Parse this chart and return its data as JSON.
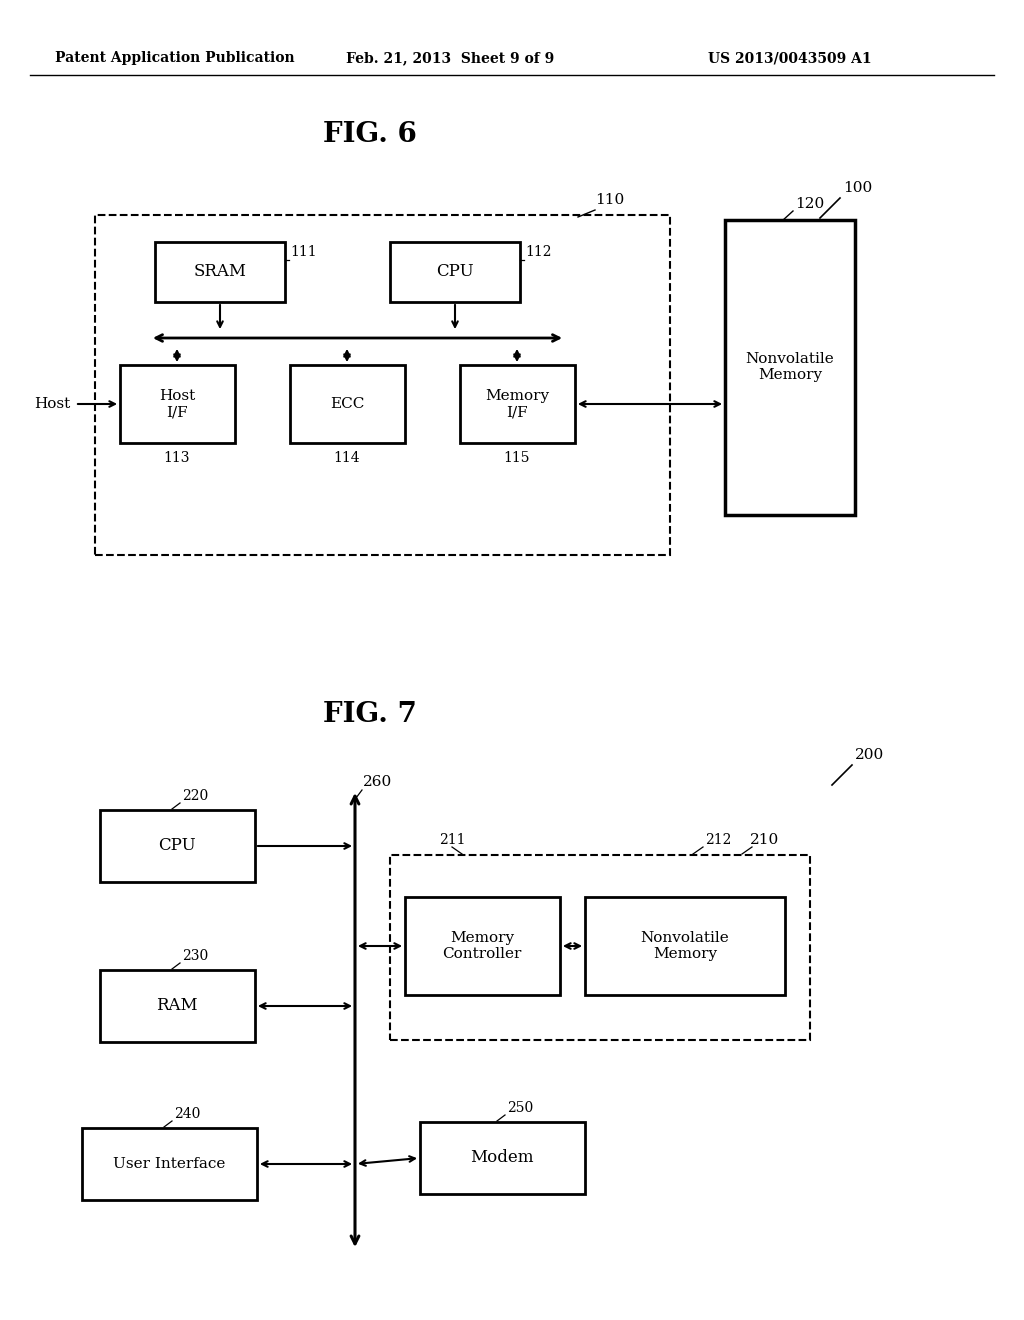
{
  "background_color": "#ffffff",
  "header_left": "Patent Application Publication",
  "header_mid": "Feb. 21, 2013  Sheet 9 of 9",
  "header_right": "US 2013/0043509 A1",
  "fig6_title": "FIG. 6",
  "fig7_title": "FIG. 7",
  "fig6": {
    "sram_text": "SRAM",
    "cpu_text": "CPU",
    "hostif_text": "Host\nI/F",
    "ecc_text": "ECC",
    "memif_text": "Memory\nI/F",
    "nonvol_text": "Nonvolatile\nMemory"
  },
  "fig7": {
    "cpu_text": "CPU",
    "ram_text": "RAM",
    "ui_text": "User Interface",
    "memctrl_text": "Memory\nController",
    "nonvol_text": "Nonvolatile\nMemory",
    "modem_text": "Modem"
  }
}
